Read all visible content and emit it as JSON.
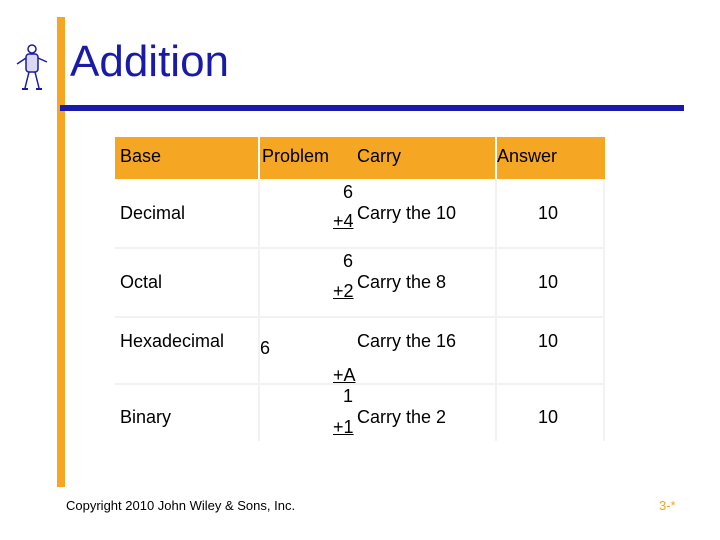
{
  "title": "Addition",
  "colors": {
    "accent": "#f5a623",
    "title": "#1a1aa8",
    "rule": "#1a1aa8"
  },
  "table": {
    "headers": {
      "base": "Base",
      "problem": "Problem",
      "carry": "Carry",
      "answer": "Answer"
    },
    "rows": [
      {
        "base": "Decimal",
        "top": "6",
        "bottom": "+4",
        "carry": "Carry the 10",
        "answer": "10"
      },
      {
        "base": "Octal",
        "top": "6",
        "bottom": "+2",
        "carry": "Carry the 8",
        "answer": "10"
      },
      {
        "base": "Hexadecimal",
        "top": "6",
        "bottom": "+A",
        "carry": "Carry the 16",
        "answer": "10"
      },
      {
        "base": "Binary",
        "top": "1",
        "bottom": "+1",
        "carry": "Carry the 2",
        "answer": "10"
      }
    ]
  },
  "footer": {
    "copyright": "Copyright 2010 John Wiley & Sons, Inc.",
    "page": "3-*"
  },
  "icons": {
    "logo": "stick-figure-mascot-icon"
  }
}
